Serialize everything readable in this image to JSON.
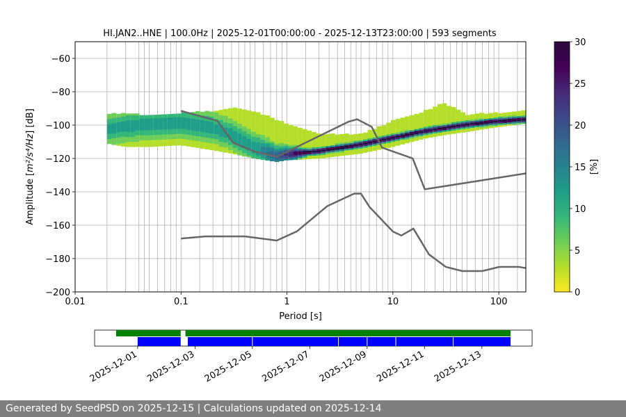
{
  "footer": {
    "text": "Generated by SeedPSD on 2025-12-15 | Calculations updated on 2025-12-14"
  },
  "colors": {
    "nlnm_nhnm": "#666666",
    "availability_top": "#008000",
    "availability_bottom": "#0000ff",
    "grid": "#b0b0b0"
  },
  "colormap": [
    "#fde725",
    "#b5de2b",
    "#6ece58",
    "#35b779",
    "#1f9e89",
    "#26828e",
    "#31688e",
    "#3e4989",
    "#482878",
    "#440154",
    "#2b0a3d"
  ],
  "chart_data": [
    {
      "type": "heatmap",
      "title": "HI.JAN2..HNE | 100.0Hz | 2025-12-01T00:00:00 - 2025-12-13T23:00:00 | 593 segments",
      "xlabel": "Period [s]",
      "ylabel_prefix": "Amplitude [",
      "ylabel_math": "m²/s⁴/Hz",
      "ylabel_suffix": "] [dB]",
      "xscale": "log",
      "xlim": [
        0.01,
        180
      ],
      "ylim": [
        -200,
        -50
      ],
      "grid": true,
      "xticks": [
        0.01,
        0.1,
        1,
        10,
        100
      ],
      "xticklabels": [
        "0.01",
        "0.1",
        "1",
        "10",
        "100"
      ],
      "yticks": [
        -200,
        -180,
        -160,
        -140,
        -120,
        -100,
        -80,
        -60
      ],
      "yticklabels": [
        "−200",
        "−180",
        "−160",
        "−140",
        "−120",
        "−100",
        "−80",
        "−60"
      ],
      "colorbar": {
        "label": "[%]",
        "range": [
          0,
          30
        ],
        "ticks": [
          0,
          5,
          10,
          15,
          20,
          25,
          30
        ],
        "ticklabels": [
          "0",
          "5",
          "10",
          "15",
          "20",
          "25",
          "30"
        ]
      },
      "mode_curve": {
        "x": [
          0.02,
          0.03,
          0.05,
          0.1,
          0.2,
          0.3,
          0.5,
          0.8,
          1,
          2,
          5,
          10,
          20,
          50,
          100,
          180
        ],
        "y": [
          -103,
          -101,
          -100,
          -99,
          -102,
          -106,
          -114,
          -119,
          -118,
          -116,
          -112,
          -108,
          -104,
          -100,
          -98,
          -97
        ]
      },
      "envelope": {
        "x": [
          0.02,
          0.03,
          0.05,
          0.1,
          0.2,
          0.3,
          0.5,
          0.8,
          1,
          2,
          5,
          10,
          20,
          30,
          50,
          100,
          180
        ],
        "upper": [
          -94,
          -93,
          -95,
          -93,
          -92,
          -90,
          -92,
          -97,
          -100,
          -106,
          -106,
          -98,
          -92,
          -87,
          -94,
          -93,
          -92
        ],
        "lower": [
          -111,
          -113,
          -113,
          -112,
          -115,
          -117,
          -120,
          -122,
          -121,
          -120,
          -117,
          -113,
          -108,
          -106,
          -104,
          -101,
          -99
        ]
      },
      "noise_models": [
        {
          "x": [
            0.1,
            0.22,
            0.31,
            0.5,
            0.8,
            3.8,
            4.6,
            6.3,
            7.9,
            15.4,
            20,
            354.8
          ],
          "y": [
            -91.5,
            -97.4,
            -110.5,
            -116,
            -119,
            -98,
            -96.5,
            -101,
            -113.5,
            -120,
            -138.5,
            -126
          ]
        },
        {
          "x": [
            0.1,
            0.17,
            0.4,
            0.8,
            1.24,
            2.4,
            4.3,
            5.0,
            6.0,
            10,
            12,
            15.6,
            21.9,
            31.6,
            45,
            70,
            101,
            154,
            180
          ],
          "y": [
            -168,
            -166.7,
            -166.7,
            -169.2,
            -163.7,
            -148.6,
            -141.1,
            -141.1,
            -149,
            -163.8,
            -166.2,
            -162.1,
            -177.5,
            -185,
            -187.5,
            -187.5,
            -185,
            -185,
            -185.7
          ]
        }
      ],
      "vertical_gridlines": [
        0.02,
        0.03,
        0.04,
        0.045,
        0.05,
        0.06,
        0.07,
        0.08,
        0.09,
        0.15,
        0.2,
        0.25,
        0.3,
        0.35,
        0.4,
        0.45,
        0.5,
        0.6,
        0.7,
        0.8,
        0.9,
        1.5,
        2,
        2.5,
        3,
        3.5,
        4,
        4.5,
        5,
        6,
        7,
        8,
        9,
        15,
        20,
        25,
        30,
        35,
        40,
        45,
        50,
        60,
        70,
        80,
        90,
        150
      ]
    },
    {
      "type": "timeline",
      "xlim": [
        "2025-11-29T12:00",
        "2025-12-14T18:00"
      ],
      "xticklabels": [
        "2025-12-01",
        "2025-12-03",
        "2025-12-05",
        "2025-12-07",
        "2025-12-09",
        "2025-12-11",
        "2025-12-13"
      ],
      "xticks": [
        "2025-12-01",
        "2025-12-03",
        "2025-12-05",
        "2025-12-07",
        "2025-12-09",
        "2025-12-11",
        "2025-12-13"
      ],
      "top_bar_segments": [
        [
          "2025-11-30T06:00",
          "2025-12-02T12:00"
        ],
        [
          "2025-12-02T16:00",
          "2025-12-14T00:00"
        ]
      ],
      "bottom_bar_segments": [
        [
          "2025-12-01T00:00",
          "2025-12-02T12:00"
        ],
        [
          "2025-12-02T18:00",
          "2025-12-14T00:00"
        ]
      ],
      "bottom_bar_gaps": [
        "2025-12-05T00:00",
        "2025-12-08T00:00",
        "2025-12-09T00:00",
        "2025-12-10T00:00",
        "2025-12-12T00:00"
      ]
    }
  ]
}
